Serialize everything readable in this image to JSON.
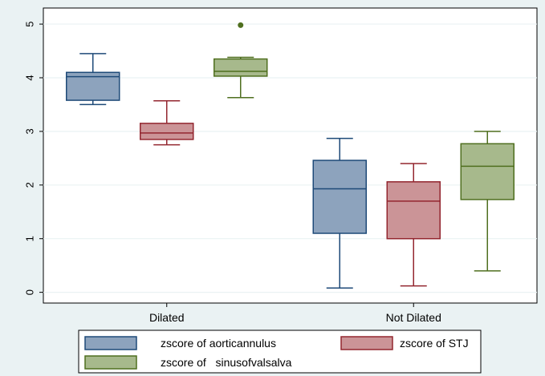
{
  "chart_data": {
    "type": "box",
    "title": "",
    "xlabel": "",
    "ylabel": "",
    "ylim": [
      -0.2,
      5.3
    ],
    "yticks": [
      0,
      1,
      2,
      3,
      4,
      5
    ],
    "y_tick_labels": [
      "0",
      "1",
      "2",
      "3",
      "4",
      "5"
    ],
    "categories": [
      "Dilated",
      "Not Dilated"
    ],
    "grid": true,
    "legend_position": "bottom",
    "series": [
      {
        "name": "zscore of aorticannulus",
        "color": "#8da3bd",
        "stroke": "#1e4a78",
        "boxes": [
          {
            "whisker_low": 3.5,
            "q1": 3.58,
            "median": 4.02,
            "q3": 4.1,
            "whisker_high": 4.45,
            "outliers": []
          },
          {
            "whisker_low": 0.08,
            "q1": 1.1,
            "median": 1.93,
            "q3": 2.46,
            "whisker_high": 2.87,
            "outliers": []
          }
        ]
      },
      {
        "name": "zscore of  STJ",
        "color": "#cb9497",
        "stroke": "#93262f",
        "boxes": [
          {
            "whisker_low": 2.75,
            "q1": 2.85,
            "median": 2.97,
            "q3": 3.15,
            "whisker_high": 3.57,
            "outliers": []
          },
          {
            "whisker_low": 0.12,
            "q1": 1.0,
            "median": 1.7,
            "q3": 2.06,
            "whisker_high": 2.4,
            "outliers": []
          }
        ]
      },
      {
        "name": "zscore of   sinusofvalsalva",
        "color": "#a7b98c",
        "stroke": "#4f6f1f",
        "boxes": [
          {
            "whisker_low": 3.63,
            "q1": 4.03,
            "median": 4.12,
            "q3": 4.35,
            "whisker_high": 4.38,
            "outliers": [
              4.98
            ]
          },
          {
            "whisker_low": 0.4,
            "q1": 1.73,
            "median": 2.35,
            "q3": 2.77,
            "whisker_high": 3.0,
            "outliers": []
          }
        ]
      }
    ]
  }
}
